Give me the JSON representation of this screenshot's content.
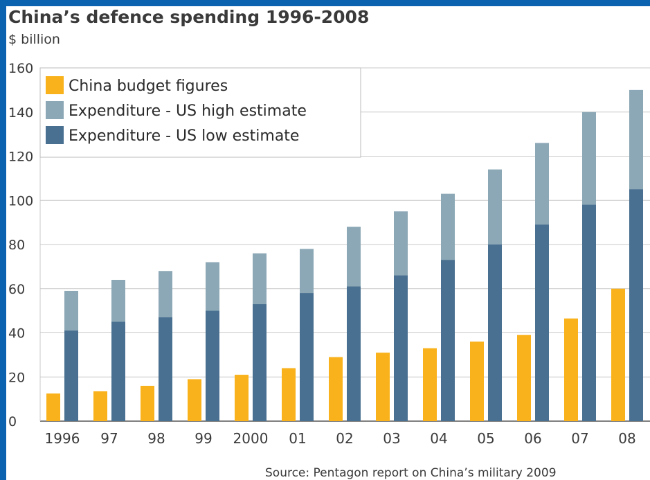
{
  "chart_data": {
    "type": "bar",
    "title": "China’s defence spending 1996-2008",
    "subtitle": "$ billion",
    "source": "Source: Pentagon report on China’s military 2009",
    "categories": [
      "1996",
      "97",
      "98",
      "99",
      "2000",
      "01",
      "02",
      "03",
      "04",
      "05",
      "06",
      "07",
      "08"
    ],
    "series": [
      {
        "name": "China budget figures",
        "color": "#f9b21b",
        "values": [
          12.5,
          13.5,
          16,
          19,
          21,
          24,
          29,
          31,
          33,
          36,
          39,
          46.5,
          60
        ]
      },
      {
        "name": "Expenditure - US high estimate",
        "color": "#8ca8b6",
        "values": [
          59,
          64,
          68,
          72,
          76,
          78,
          88,
          95,
          103,
          114,
          126,
          140,
          150
        ]
      },
      {
        "name": "Expenditure - US low estimate",
        "color": "#4a7091",
        "values": [
          41,
          45,
          47,
          50,
          53,
          58,
          61,
          66,
          73,
          80,
          89,
          98,
          105
        ]
      }
    ],
    "ylim": [
      0,
      160
    ],
    "yticks": [
      0,
      20,
      40,
      60,
      80,
      100,
      120,
      140,
      160
    ],
    "grid": true,
    "legend_position": "top-left"
  }
}
